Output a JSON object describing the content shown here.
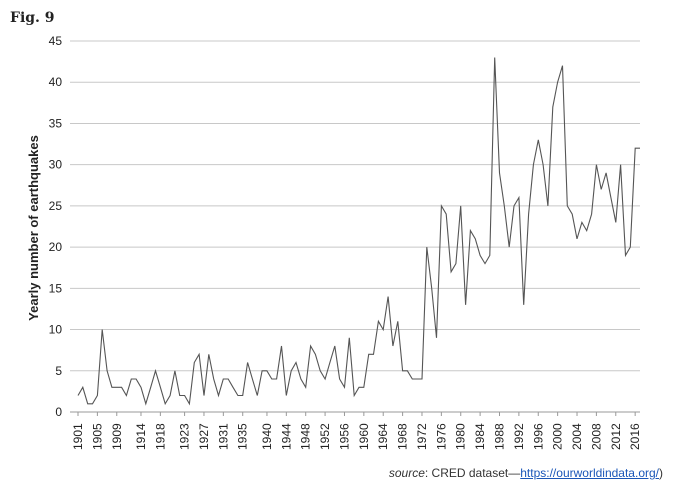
{
  "figure_label": "Fig. 9",
  "chart_data": {
    "type": "line",
    "y_label": "Yearly number of earthquakes",
    "x": [
      1901,
      1902,
      1903,
      1904,
      1905,
      1906,
      1907,
      1908,
      1909,
      1910,
      1911,
      1912,
      1913,
      1914,
      1915,
      1916,
      1917,
      1918,
      1919,
      1920,
      1921,
      1922,
      1923,
      1924,
      1925,
      1926,
      1927,
      1928,
      1929,
      1930,
      1931,
      1932,
      1933,
      1934,
      1935,
      1936,
      1937,
      1938,
      1939,
      1940,
      1941,
      1942,
      1943,
      1944,
      1945,
      1946,
      1947,
      1948,
      1949,
      1950,
      1951,
      1952,
      1953,
      1954,
      1955,
      1956,
      1957,
      1958,
      1959,
      1960,
      1961,
      1962,
      1963,
      1964,
      1965,
      1966,
      1967,
      1968,
      1969,
      1970,
      1971,
      1972,
      1973,
      1974,
      1975,
      1976,
      1977,
      1978,
      1979,
      1980,
      1981,
      1982,
      1983,
      1984,
      1985,
      1986,
      1987,
      1988,
      1989,
      1990,
      1991,
      1992,
      1993,
      1994,
      1995,
      1996,
      1997,
      1998,
      1999,
      2000,
      2001,
      2002,
      2003,
      2004,
      2005,
      2006,
      2007,
      2008,
      2009,
      2010,
      2011,
      2012,
      2013,
      2014,
      2015,
      2016,
      2017
    ],
    "values": [
      2,
      3,
      1,
      1,
      2,
      10,
      5,
      3,
      3,
      3,
      2,
      4,
      4,
      3,
      1,
      3,
      5,
      3,
      1,
      2,
      5,
      2,
      2,
      1,
      6,
      7,
      2,
      7,
      4,
      2,
      4,
      4,
      3,
      2,
      2,
      6,
      4,
      2,
      5,
      5,
      4,
      4,
      8,
      2,
      5,
      6,
      4,
      3,
      8,
      7,
      5,
      4,
      6,
      8,
      4,
      3,
      9,
      2,
      3,
      3,
      7,
      7,
      11,
      10,
      14,
      8,
      11,
      5,
      5,
      4,
      4,
      4,
      20,
      15,
      9,
      25,
      24,
      17,
      18,
      25,
      13,
      22,
      21,
      19,
      18,
      19,
      43,
      29,
      25,
      20,
      25,
      26,
      13,
      24,
      30,
      33,
      30,
      25,
      37,
      40,
      42,
      25,
      24,
      21,
      23,
      22,
      24,
      30,
      27,
      29,
      26,
      23,
      30,
      19,
      20,
      32,
      32
    ],
    "color": "#555555",
    "xlim": [
      1901,
      2017
    ],
    "xticks": [
      1901,
      1905,
      1909,
      1914,
      1918,
      1923,
      1927,
      1931,
      1935,
      1940,
      1944,
      1948,
      1952,
      1956,
      1960,
      1964,
      1968,
      1972,
      1976,
      1980,
      1984,
      1988,
      1992,
      1996,
      2000,
      2004,
      2008,
      2012,
      2016
    ],
    "ylim": [
      0,
      45
    ],
    "yticks": [
      0,
      5,
      10,
      15,
      20,
      25,
      30,
      35,
      40,
      45
    ],
    "grid": true
  },
  "source": {
    "label": "source",
    "text": ": CRED dataset—",
    "link": "https://ourworldindata.org/",
    "tail": ")"
  }
}
